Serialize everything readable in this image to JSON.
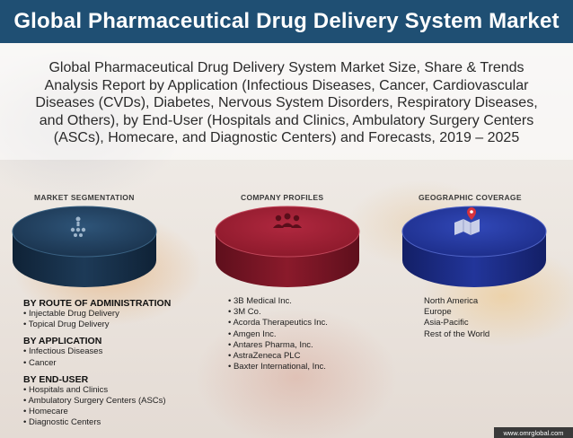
{
  "title": "Global Pharmaceutical Drug Delivery System Market",
  "subtitle": "Global Pharmaceutical Drug Delivery System Market Size, Share & Trends Analysis Report by Application (Infectious Diseases, Cancer, Cardiovascular Diseases (CVDs), Diabetes, Nervous System Disorders, Respiratory Diseases, and Others), by End-User (Hospitals and Clinics, Ambulatory Surgery Centers (ASCs), Homecare, and Diagnostic Centers) and Forecasts, 2019 – 2025",
  "columns": {
    "segmentation": {
      "heading": "MARKET SEGMENTATION",
      "icon": "segmentation-icon",
      "color": "#1b3550",
      "groups": [
        {
          "header": "BY ROUTE OF ADMINISTRATION",
          "items": [
            "Injectable Drug Delivery",
            "Topical Drug Delivery"
          ]
        },
        {
          "header": "BY APPLICATION",
          "items": [
            "Infectious Diseases",
            "Cancer"
          ]
        },
        {
          "header": "BY END-USER",
          "items": [
            "Hospitals and Clinics",
            "Ambulatory Surgery Centers (ASCs)",
            "Homecare",
            "Diagnostic Centers"
          ]
        }
      ]
    },
    "companies": {
      "heading": "COMPANY PROFILES",
      "icon": "people-icon",
      "color": "#8e1a2c",
      "items": [
        "3B Medical Inc.",
        "3M Co.",
        "Acorda Therapeutics Inc.",
        "Amgen Inc.",
        "Antares Pharma, Inc.",
        "AstraZeneca PLC",
        "Baxter International, Inc."
      ]
    },
    "geography": {
      "heading": "GEOGRAPHIC COVERAGE",
      "icon": "map-pin-icon",
      "color": "#1e2f8c",
      "items": [
        "North America",
        "Europe",
        "Asia-Pacific",
        "Rest of the World"
      ]
    }
  },
  "footer": "www.omrglobal.com"
}
